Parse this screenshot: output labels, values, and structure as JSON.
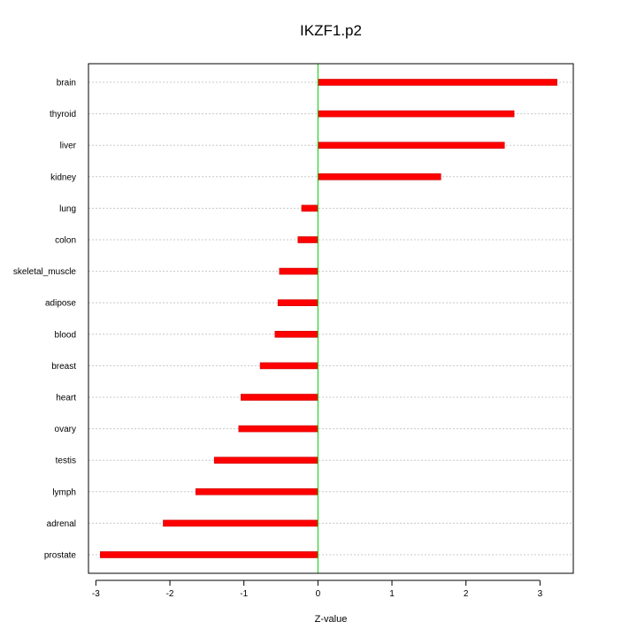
{
  "chart_data": {
    "type": "bar",
    "orientation": "horizontal",
    "title": "IKZF1.p2",
    "xlabel": "Z-value",
    "ylabel": "",
    "xlim": [
      -3.1,
      3.45
    ],
    "xticks": [
      -3,
      -2,
      -1,
      0,
      1,
      2,
      3
    ],
    "xtick_labels": [
      "-3",
      "-2",
      "-1",
      "0",
      "1",
      "2",
      "3"
    ],
    "grid": "horizontal dotted",
    "reference_line": {
      "x": 0
    },
    "categories": [
      "brain",
      "thyroid",
      "liver",
      "kidney",
      "lung",
      "colon",
      "skeletal_muscle",
      "adipose",
      "blood",
      "breast",
      "heart",
      "ovary",
      "testis",
      "lymph",
      "adrenal",
      "prostate"
    ],
    "values": [
      3.23,
      2.65,
      2.52,
      1.66,
      -0.22,
      -0.27,
      -0.52,
      -0.54,
      -0.58,
      -0.78,
      -1.04,
      -1.07,
      -1.4,
      -1.65,
      -2.09,
      -2.94
    ]
  },
  "colors": {
    "bar": "#ff0000",
    "bar_stroke": "#cc0000",
    "zero_line": "#00cc00",
    "grid": "#c8c8c8",
    "axis": "#000000"
  }
}
